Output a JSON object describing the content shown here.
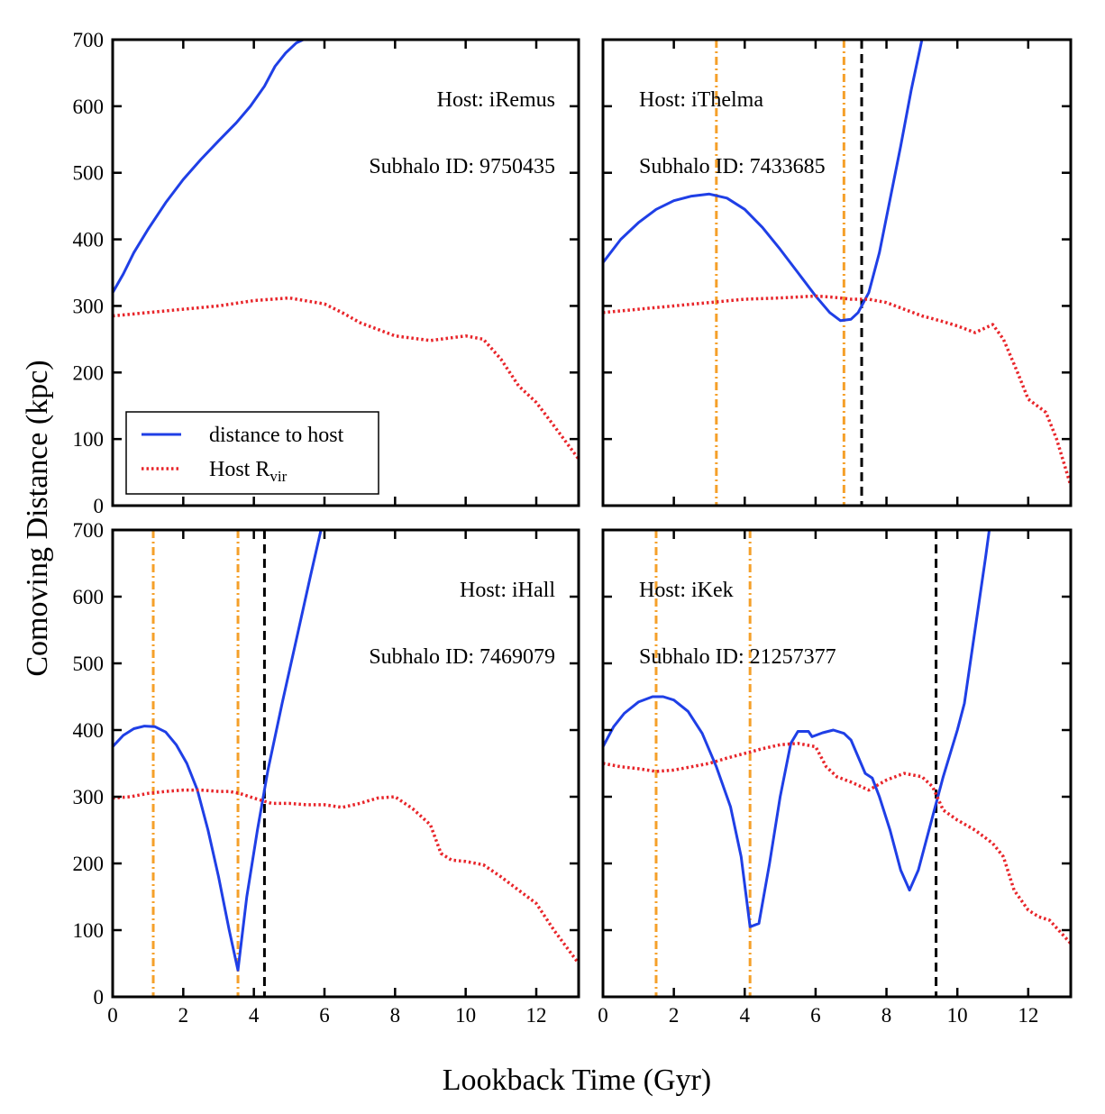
{
  "colors": {
    "distance": "#1f3fe6",
    "rvir": "#e8252a",
    "pericenter": "#f5a02a",
    "infall": "#000000"
  },
  "labels": {
    "ylabel": "Comoving Distance (kpc)",
    "xlabel": "Lookback Time (Gyr)"
  },
  "legend": {
    "entries": [
      {
        "label": "distance to host",
        "style": "solid",
        "color": "#1f3fe6"
      },
      {
        "label": "Host R",
        "sub": "vir",
        "style": "dotted",
        "color": "#e8252a"
      }
    ]
  },
  "chart_data": [
    {
      "type": "line",
      "host_label": "Host: iRemus",
      "subhalo_label": "Subhalo ID: 9750435",
      "xlim": [
        0,
        13.2
      ],
      "ylim": [
        0,
        700
      ],
      "xticks": [
        0,
        2,
        4,
        6,
        8,
        10,
        12
      ],
      "yticks": [
        0,
        100,
        200,
        300,
        400,
        500,
        600,
        700
      ],
      "pericenters": [],
      "infall": [],
      "series": [
        {
          "name": "distance to host",
          "x": [
            0,
            0.3,
            0.6,
            1.0,
            1.5,
            2.0,
            2.5,
            3.0,
            3.5,
            3.9,
            4.3,
            4.6,
            4.9,
            5.2,
            5.4
          ],
          "y": [
            320,
            348,
            380,
            415,
            455,
            490,
            520,
            548,
            575,
            600,
            630,
            660,
            680,
            695,
            700
          ]
        },
        {
          "name": "Host R_vir",
          "x": [
            0,
            1,
            2,
            3,
            4,
            5,
            6,
            6.5,
            7,
            7.5,
            8,
            9,
            10,
            10.5,
            11,
            11.5,
            12,
            12.5,
            13.2
          ],
          "y": [
            285,
            290,
            295,
            300,
            308,
            312,
            303,
            290,
            275,
            265,
            255,
            248,
            255,
            250,
            220,
            180,
            155,
            120,
            70
          ]
        }
      ]
    },
    {
      "type": "line",
      "host_label": "Host: iThelma",
      "subhalo_label": "Subhalo ID: 7433685",
      "xlim": [
        0,
        13.2
      ],
      "ylim": [
        0,
        700
      ],
      "xticks": [
        0,
        2,
        4,
        6,
        8,
        10,
        12
      ],
      "yticks": [
        0,
        100,
        200,
        300,
        400,
        500,
        600,
        700
      ],
      "pericenters": [
        3.2,
        6.8
      ],
      "infall": [
        7.3
      ],
      "series": [
        {
          "name": "distance to host",
          "x": [
            0,
            0.5,
            1.0,
            1.5,
            2.0,
            2.5,
            3.0,
            3.5,
            4.0,
            4.5,
            5.0,
            5.5,
            6.0,
            6.4,
            6.7,
            7.0,
            7.2,
            7.5,
            7.8,
            8.1,
            8.4,
            8.7,
            9.0
          ],
          "y": [
            365,
            400,
            425,
            445,
            458,
            465,
            468,
            462,
            445,
            418,
            385,
            350,
            315,
            290,
            278,
            280,
            290,
            320,
            380,
            460,
            540,
            625,
            700
          ]
        },
        {
          "name": "Host R_vir",
          "x": [
            0,
            1,
            2,
            3,
            4,
            5,
            6,
            6.5,
            7,
            7.5,
            8,
            8.5,
            9,
            9.5,
            10,
            10.5,
            11,
            11.3,
            11.7,
            12,
            12.5,
            12.8,
            13.2
          ],
          "y": [
            290,
            295,
            300,
            305,
            310,
            312,
            315,
            313,
            310,
            310,
            305,
            295,
            285,
            278,
            270,
            260,
            272,
            250,
            200,
            160,
            140,
            100,
            30
          ]
        }
      ]
    },
    {
      "type": "line",
      "host_label": "Host: iHall",
      "subhalo_label": "Subhalo ID: 7469079",
      "xlim": [
        0,
        13.2
      ],
      "ylim": [
        0,
        700
      ],
      "xticks": [
        0,
        2,
        4,
        6,
        8,
        10,
        12
      ],
      "yticks": [
        0,
        100,
        200,
        300,
        400,
        500,
        600,
        700
      ],
      "pericenters": [
        1.15,
        3.55
      ],
      "infall": [
        4.3
      ],
      "series": [
        {
          "name": "distance to host",
          "x": [
            0,
            0.3,
            0.6,
            0.9,
            1.2,
            1.5,
            1.8,
            2.1,
            2.4,
            2.7,
            3.0,
            3.3,
            3.55,
            3.8,
            4.1,
            4.4,
            4.8,
            5.2,
            5.6,
            5.9
          ],
          "y": [
            375,
            392,
            402,
            406,
            405,
            397,
            378,
            350,
            310,
            250,
            180,
            100,
            40,
            150,
            250,
            340,
            440,
            535,
            630,
            700
          ]
        },
        {
          "name": "Host R_vir",
          "x": [
            0,
            0.5,
            1.0,
            1.5,
            2.0,
            2.5,
            3.0,
            3.3,
            3.6,
            4.0,
            4.5,
            5.0,
            5.5,
            6.0,
            6.5,
            7.0,
            7.5,
            8.0,
            8.5,
            9.0,
            9.3,
            9.6,
            10,
            10.5,
            11,
            11.5,
            12,
            12.5,
            13.2
          ],
          "y": [
            298,
            300,
            305,
            308,
            310,
            310,
            308,
            308,
            305,
            298,
            290,
            290,
            288,
            288,
            284,
            290,
            298,
            300,
            282,
            258,
            215,
            205,
            203,
            198,
            180,
            160,
            140,
            100,
            50
          ]
        }
      ]
    },
    {
      "type": "line",
      "host_label": "Host: iKek",
      "subhalo_label": "Subhalo ID: 21257377",
      "xlim": [
        0,
        13.2
      ],
      "ylim": [
        0,
        700
      ],
      "xticks": [
        0,
        2,
        4,
        6,
        8,
        10,
        12
      ],
      "yticks": [
        0,
        100,
        200,
        300,
        400,
        500,
        600,
        700
      ],
      "pericenters": [
        1.5,
        4.15
      ],
      "infall": [
        9.4
      ],
      "series": [
        {
          "name": "distance to host",
          "x": [
            0,
            0.3,
            0.6,
            1.0,
            1.4,
            1.7,
            2.0,
            2.4,
            2.8,
            3.2,
            3.6,
            3.9,
            4.15,
            4.4,
            4.7,
            5.0,
            5.3,
            5.5,
            5.8,
            5.9,
            6.2,
            6.5,
            6.8,
            7.0,
            7.2,
            7.4,
            7.6,
            7.8,
            8.1,
            8.4,
            8.65,
            8.9,
            9.2,
            9.6,
            10.0,
            10.2,
            10.5,
            10.8,
            10.9
          ],
          "y": [
            375,
            405,
            425,
            442,
            450,
            450,
            445,
            428,
            395,
            345,
            285,
            210,
            105,
            110,
            200,
            300,
            380,
            398,
            398,
            390,
            396,
            400,
            395,
            385,
            360,
            335,
            328,
            300,
            250,
            190,
            160,
            190,
            250,
            330,
            400,
            440,
            550,
            660,
            700
          ]
        },
        {
          "name": "Host R_vir",
          "x": [
            0,
            0.5,
            1.0,
            1.5,
            2.0,
            2.5,
            3.0,
            3.5,
            4.0,
            4.5,
            5.0,
            5.5,
            6.0,
            6.3,
            6.6,
            7.0,
            7.5,
            8.0,
            8.5,
            9.0,
            9.3,
            9.6,
            10.0,
            10.5,
            11.0,
            11.3,
            11.6,
            12.0,
            12.3,
            12.6,
            13.2
          ],
          "y": [
            350,
            345,
            342,
            338,
            340,
            345,
            350,
            358,
            365,
            372,
            378,
            380,
            375,
            345,
            330,
            322,
            310,
            325,
            335,
            330,
            315,
            280,
            265,
            250,
            230,
            210,
            160,
            130,
            120,
            115,
            80
          ]
        }
      ]
    }
  ]
}
